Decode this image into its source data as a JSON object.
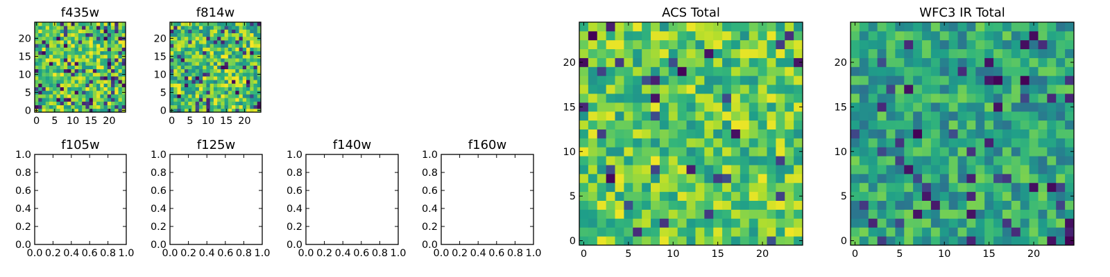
{
  "chart_data": [
    {
      "type": "heatmap",
      "title": "f435w",
      "xlabel": "",
      "ylabel": "",
      "grid_size": 25,
      "colormap": "viridis",
      "xticks": [
        "0",
        "5",
        "10",
        "15",
        "20"
      ],
      "yticks": [
        "0",
        "5",
        "10",
        "15",
        "20"
      ],
      "xlim": [
        -0.5,
        24.5
      ],
      "ylim": [
        -0.5,
        24.5
      ],
      "empty": false,
      "value_range": [
        0.0,
        1.0
      ],
      "seed": 435,
      "bias": 0.1,
      "lo": 0.5,
      "hi": 1.0
    },
    {
      "type": "heatmap",
      "title": "f814w",
      "xlabel": "",
      "ylabel": "",
      "grid_size": 25,
      "colormap": "viridis",
      "xticks": [
        "0",
        "5",
        "10",
        "15",
        "20"
      ],
      "yticks": [
        "0",
        "5",
        "10",
        "15",
        "20"
      ],
      "xlim": [
        -0.5,
        24.5
      ],
      "ylim": [
        -0.5,
        24.5
      ],
      "empty": false,
      "value_range": [
        0.0,
        1.0
      ],
      "seed": 814,
      "bias": 0.1,
      "lo": 0.45,
      "hi": 1.0
    },
    {
      "type": "heatmap",
      "title": "f105w",
      "xlabel": "",
      "ylabel": "",
      "xticks": [
        "0.0",
        "0.2",
        "0.4",
        "0.6",
        "0.8",
        "1.0"
      ],
      "yticks": [
        "0.0",
        "0.2",
        "0.4",
        "0.6",
        "0.8",
        "1.0"
      ],
      "xlim": [
        0,
        1
      ],
      "ylim": [
        0,
        1
      ],
      "empty": true
    },
    {
      "type": "heatmap",
      "title": "f125w",
      "xlabel": "",
      "ylabel": "",
      "xticks": [
        "0.0",
        "0.2",
        "0.4",
        "0.6",
        "0.8",
        "1.0"
      ],
      "yticks": [
        "0.0",
        "0.2",
        "0.4",
        "0.6",
        "0.8",
        "1.0"
      ],
      "xlim": [
        0,
        1
      ],
      "ylim": [
        0,
        1
      ],
      "empty": true
    },
    {
      "type": "heatmap",
      "title": "f140w",
      "xlabel": "",
      "ylabel": "",
      "xticks": [
        "0.0",
        "0.2",
        "0.4",
        "0.6",
        "0.8",
        "1.0"
      ],
      "yticks": [
        "0.0",
        "0.2",
        "0.4",
        "0.6",
        "0.8",
        "1.0"
      ],
      "xlim": [
        0,
        1
      ],
      "ylim": [
        0,
        1
      ],
      "empty": true
    },
    {
      "type": "heatmap",
      "title": "f160w",
      "xlabel": "",
      "ylabel": "",
      "xticks": [
        "0.0",
        "0.2",
        "0.4",
        "0.6",
        "0.8",
        "1.0"
      ],
      "yticks": [
        "0.0",
        "0.2",
        "0.4",
        "0.6",
        "0.8",
        "1.0"
      ],
      "xlim": [
        0,
        1
      ],
      "ylim": [
        0,
        1
      ],
      "empty": true
    },
    {
      "type": "heatmap",
      "title": "ACS Total",
      "xlabel": "",
      "ylabel": "",
      "grid_size": 25,
      "colormap": "viridis",
      "xticks": [
        "0",
        "5",
        "10",
        "15",
        "20"
      ],
      "yticks": [
        "0",
        "5",
        "10",
        "15",
        "20"
      ],
      "xlim": [
        -0.5,
        24.5
      ],
      "ylim": [
        -0.5,
        24.5
      ],
      "empty": false,
      "value_range": [
        0.0,
        1.0
      ],
      "seed": 1001,
      "bias": 0.06,
      "lo": 0.5,
      "hi": 0.98
    },
    {
      "type": "heatmap",
      "title": "WFC3 IR Total",
      "xlabel": "",
      "ylabel": "",
      "grid_size": 25,
      "colormap": "viridis",
      "xticks": [
        "0",
        "5",
        "10",
        "15",
        "20"
      ],
      "yticks": [
        "0",
        "5",
        "10",
        "15",
        "20"
      ],
      "xlim": [
        -0.5,
        24.5
      ],
      "ylim": [
        -0.5,
        24.5
      ],
      "empty": false,
      "value_range": [
        0.0,
        1.0
      ],
      "seed": 2002,
      "bias": 0.08,
      "lo": 0.38,
      "hi": 0.8
    }
  ]
}
